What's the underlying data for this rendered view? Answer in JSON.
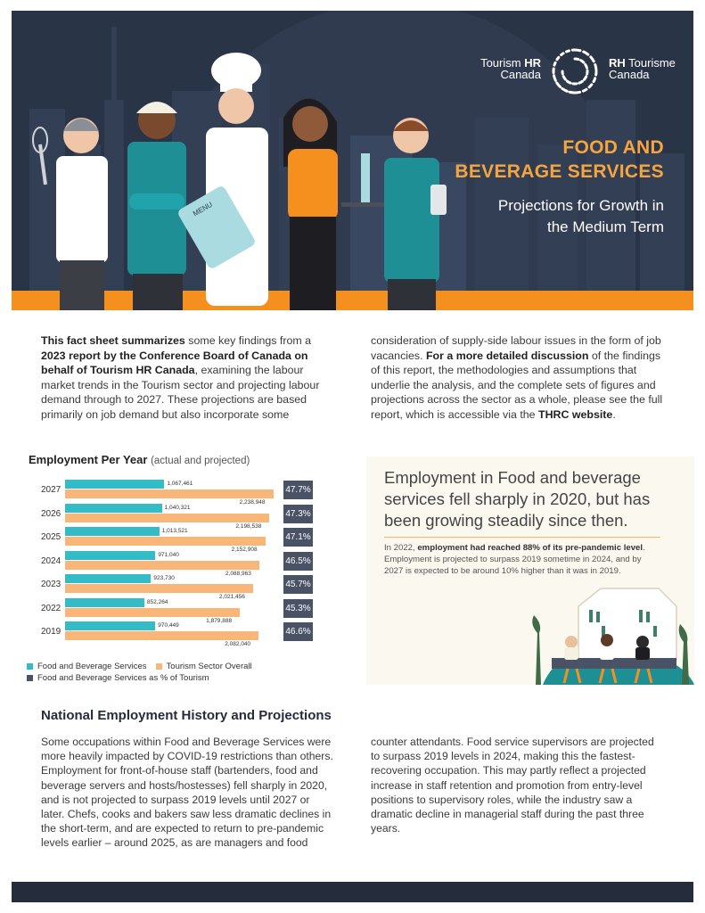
{
  "brand": {
    "left_line1": "Tourism",
    "left_line1_bold": "HR",
    "left_line2": "Canada",
    "right_line1_bold": "RH",
    "right_line1": "Tourisme",
    "right_line2": "Canada"
  },
  "hero": {
    "title_line1": "FOOD AND",
    "title_line2": "BEVERAGE SERVICES",
    "subtitle_line1": "Projections for Growth in",
    "subtitle_line2": "the Medium Term",
    "menu_label": "MENU"
  },
  "intro": {
    "p1_bold1": "This fact sheet summarizes",
    "p1_t1": " some key findings from a ",
    "p1_bold2": "2023 report by the Conference Board of Canada on behalf of Tourism HR Canada",
    "p1_t2": ", examining the labour market trends in the Tourism sector and projecting labour demand through to 2027. These projections are based primarily on job demand but also incorporate some consideration of supply-side labour issues in the form of job vacancies. ",
    "p1_bold3": "For a more detailed discussion",
    "p1_t3": " of the findings of this report, the methodologies and assumptions that underlie the analysis, and the complete sets of figures and projections across the sector as a whole, please see the full report, which is accessible via the ",
    "p1_bold4": "THRC website",
    "p1_t4": "."
  },
  "chart": {
    "title": "Employment Per Year",
    "title_note": "(actual and projected)"
  },
  "chart_data": {
    "type": "bar",
    "orientation": "horizontal",
    "categories": [
      "2027",
      "2026",
      "2025",
      "2024",
      "2023",
      "2022",
      "2019"
    ],
    "series": [
      {
        "name": "Food and Beverage Services",
        "color": "#33bcc6",
        "values": [
          1067461,
          1040321,
          1013521,
          971040,
          923730,
          852264,
          970449
        ],
        "labels": [
          "1,067,461",
          "1,040,321",
          "1,013,521",
          "971,040",
          "923,730",
          "852,264",
          "970,449"
        ]
      },
      {
        "name": "Tourism Sector Overall",
        "color": "#f8b778",
        "values": [
          2238948,
          2198538,
          2152908,
          2088963,
          2021456,
          1879888,
          2082040
        ],
        "labels": [
          "2,238,948",
          "2,198,538",
          "2,152,908",
          "2,088,963",
          "2,021,456",
          "1,879,888",
          "2,082,040"
        ]
      },
      {
        "name": "Food and Beverage Services as % of Tourism",
        "color": "#4a5266",
        "values": [
          47.7,
          47.3,
          47.1,
          46.5,
          45.7,
          45.3,
          46.6
        ],
        "labels": [
          "47.7%",
          "47.3%",
          "47.1%",
          "46.5%",
          "45.7%",
          "45.3%",
          "46.6%"
        ]
      }
    ],
    "title": "Employment Per Year",
    "subtitle": "(actual and projected)",
    "xlim": [
      0,
      2300000
    ],
    "grid": false,
    "legend_position": "bottom"
  },
  "callout": {
    "headline": "Employment in Food and beverage services fell sharply in 2020, but has been growing steadily since then.",
    "body_t1": "In 2022, ",
    "body_bold": "employment had reached 88% of its pre-pandemic level",
    "body_t2": ". Employment is projected to surpass 2019 sometime in 2024, and by 2027 is expected to be around 10% higher than it was in 2019."
  },
  "section2": {
    "heading": "National Employment History and Projections",
    "body": "Some occupations within Food and Beverage Services were more heavily impacted by COVID-19 restrictions than others. Employment for front-of-house staff (bartenders, food and beverage servers and hosts/hostesses) fell sharply in 2020, and is not projected to surpass 2019 levels until 2027 or later. Chefs, cooks and bakers saw less dramatic declines in the short-term, and are expected to return to pre-pandemic levels earlier – around 2025, as are managers and food counter attendants. Food service supervisors are projected to surpass 2019 levels in 2024, making this the fastest-recovering occupation. This may partly reflect a projected increase in staff retention and promotion from entry-level positions to supervisory roles, while the industry saw a dramatic decline in managerial staff during the past three years."
  },
  "colors": {
    "navy": "#2a3447",
    "orange": "#f5901e",
    "teal": "#33bcc6",
    "peach": "#f8b778",
    "slate": "#4a5266"
  }
}
